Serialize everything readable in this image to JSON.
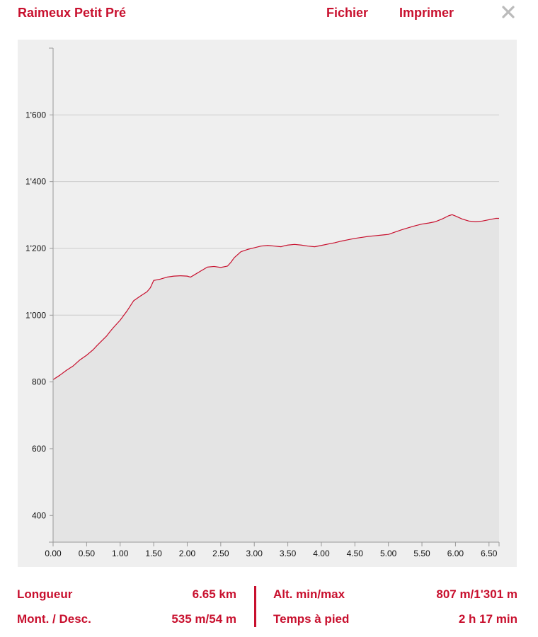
{
  "header": {
    "title": "Raimeux Petit Pré",
    "file_label": "Fichier",
    "print_label": "Imprimer",
    "close_icon": "close-icon"
  },
  "colors": {
    "accent": "#c8102e",
    "chart_bg": "#efefef",
    "area_fill": "#e4e4e4",
    "grid": "#cccccc",
    "close": "#bbbbbb"
  },
  "chart_data": {
    "type": "area",
    "title": "",
    "xlabel": "",
    "ylabel": "",
    "xlim": [
      0,
      6.65
    ],
    "ylim": [
      320,
      1800
    ],
    "grid": true,
    "x_ticks": [
      "0.00",
      "0.50",
      "1.00",
      "1.50",
      "2.00",
      "2.50",
      "3.00",
      "3.50",
      "4.00",
      "4.50",
      "5.00",
      "5.50",
      "6.00",
      "6.50"
    ],
    "y_ticks": [
      "400",
      "600",
      "800",
      "1'000",
      "1'200",
      "1'400",
      "1'600"
    ],
    "series": [
      {
        "x": [
          0.0,
          0.1,
          0.2,
          0.3,
          0.35,
          0.4,
          0.5,
          0.6,
          0.65,
          0.7,
          0.8,
          0.85,
          0.9,
          1.0,
          1.1,
          1.2,
          1.3,
          1.4,
          1.45,
          1.5,
          1.55,
          1.6,
          1.7,
          1.8,
          1.9,
          2.0,
          2.05,
          2.1,
          2.2,
          2.3,
          2.4,
          2.5,
          2.6,
          2.65,
          2.7,
          2.8,
          2.9,
          3.0,
          3.1,
          3.2,
          3.3,
          3.4,
          3.45,
          3.5,
          3.6,
          3.7,
          3.8,
          3.9,
          4.0,
          4.1,
          4.2,
          4.3,
          4.4,
          4.5,
          4.6,
          4.7,
          4.8,
          4.9,
          4.95,
          5.0,
          5.1,
          5.2,
          5.3,
          5.4,
          5.5,
          5.6,
          5.7,
          5.8,
          5.9,
          5.95,
          6.0,
          6.1,
          6.2,
          6.3,
          6.4,
          6.5,
          6.6,
          6.65
        ],
        "values": [
          807,
          820,
          835,
          848,
          857,
          866,
          880,
          897,
          908,
          918,
          938,
          951,
          963,
          985,
          1012,
          1043,
          1057,
          1070,
          1082,
          1104,
          1106,
          1108,
          1114,
          1117,
          1118,
          1117,
          1114,
          1120,
          1132,
          1144,
          1146,
          1143,
          1147,
          1158,
          1172,
          1190,
          1197,
          1202,
          1207,
          1209,
          1207,
          1205,
          1208,
          1210,
          1212,
          1210,
          1207,
          1205,
          1209,
          1213,
          1217,
          1222,
          1226,
          1230,
          1233,
          1236,
          1238,
          1240,
          1241,
          1242,
          1249,
          1256,
          1262,
          1268,
          1273,
          1276,
          1280,
          1288,
          1298,
          1301,
          1297,
          1288,
          1282,
          1280,
          1282,
          1286,
          1290,
          1290
        ]
      }
    ]
  },
  "stats": {
    "length_label": "Longueur",
    "length_value": "6.65 km",
    "alt_label": "Alt. min/max",
    "alt_value": "807 m/1'301 m",
    "climb_label": "Mont. / Desc.",
    "climb_value": "535 m/54 m",
    "time_label": "Temps à pied",
    "time_value": "2 h 17 min"
  }
}
